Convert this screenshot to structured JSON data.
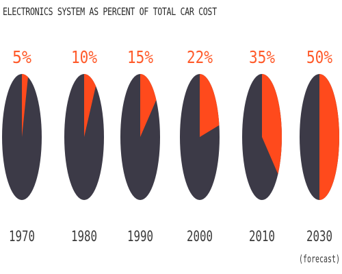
{
  "chart_data": {
    "type": "pie",
    "title": "ELECTRONICS SYSTEM AS PERCENT OF TOTAL CAR COST",
    "categories": [
      "1970",
      "1980",
      "1990",
      "2000",
      "2010",
      "2030"
    ],
    "category_notes": [
      "",
      "",
      "",
      "",
      "",
      "(forecast)"
    ],
    "value_labels": [
      "5%",
      "10%",
      "15%",
      "22%",
      "35%",
      "50%"
    ],
    "values": [
      5,
      10,
      15,
      22,
      35,
      50
    ],
    "unit": "percent",
    "colors": {
      "highlight": "#ff4a1c",
      "remainder": "#3c3a47",
      "label_pct": "#ff5a2a",
      "label_year": "#3a3a3a",
      "title": "#2a2a2a"
    }
  }
}
